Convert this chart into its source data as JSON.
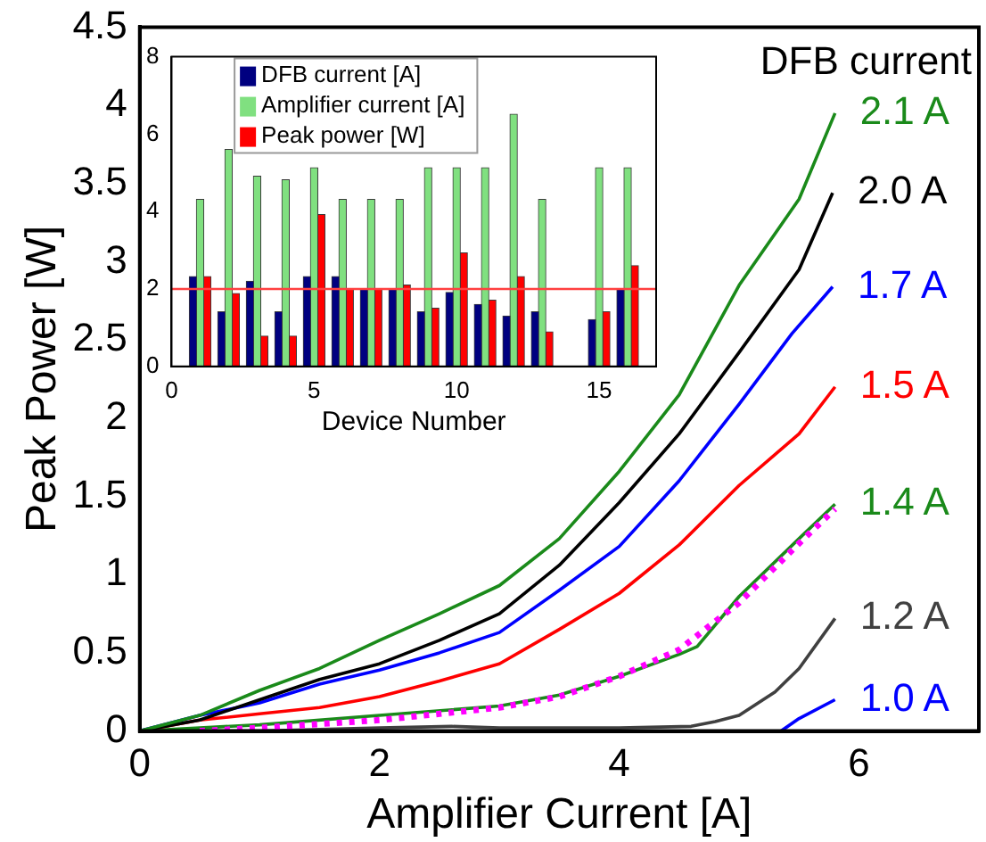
{
  "chart_data": [
    {
      "type": "line",
      "xlabel": "Amplifier Current [A]",
      "ylabel": "Peak Power [W]",
      "legend_title": "DFB current",
      "xlim": [
        0,
        7
      ],
      "xticks": [
        0,
        2,
        4,
        6
      ],
      "ylim": [
        0,
        4.5
      ],
      "yticks": [
        0,
        0.5,
        1,
        1.5,
        2,
        2.5,
        3,
        3.5,
        4,
        4.5
      ],
      "grid": false,
      "legend": false,
      "marker": "none",
      "series": [
        {
          "name": "2.1 A",
          "color": "#1a8a1a",
          "x": [
            0,
            0.5,
            1,
            1.5,
            2,
            2.5,
            3,
            3.5,
            4,
            4.5,
            5,
            5.5,
            5.8
          ],
          "values": [
            0,
            0.1,
            0.26,
            0.4,
            0.58,
            0.75,
            0.93,
            1.23,
            1.66,
            2.15,
            2.85,
            3.4,
            3.95
          ]
        },
        {
          "name": "2.0 A",
          "color": "#000000",
          "x": [
            0,
            0.5,
            1,
            1.5,
            2,
            2.5,
            3,
            3.5,
            4,
            4.5,
            5,
            5.5,
            5.78
          ],
          "values": [
            0,
            0.07,
            0.2,
            0.33,
            0.43,
            0.58,
            0.75,
            1.06,
            1.46,
            1.9,
            2.42,
            2.95,
            3.44
          ]
        },
        {
          "name": "1.7 A",
          "color": "#0000ff",
          "x": [
            0,
            0.5,
            1,
            1.5,
            2,
            2.5,
            3,
            3.5,
            4,
            4.5,
            5,
            5.44,
            5.78
          ],
          "values": [
            0,
            0.1,
            0.18,
            0.3,
            0.39,
            0.5,
            0.63,
            0.9,
            1.18,
            1.6,
            2.09,
            2.54,
            2.84
          ]
        },
        {
          "name": "1.5 A",
          "color": "#ff0000",
          "x": [
            0,
            0.5,
            1,
            1.5,
            2,
            2.5,
            3,
            3.5,
            4,
            4.5,
            5,
            5.5,
            5.8
          ],
          "values": [
            0,
            0.07,
            0.11,
            0.15,
            0.22,
            0.32,
            0.43,
            0.65,
            0.88,
            1.19,
            1.57,
            1.9,
            2.2
          ]
        },
        {
          "color": "#ff00ff",
          "line_style": "dotted",
          "x": [
            0.5,
            1,
            2,
            3,
            3.5,
            4,
            4.5,
            5,
            5.5,
            5.8
          ],
          "values": [
            0,
            0.02,
            0.07,
            0.15,
            0.22,
            0.35,
            0.52,
            0.82,
            1.2,
            1.42
          ]
        },
        {
          "name": "1.4 A",
          "color": "#1a8a1a",
          "x": [
            0,
            0.5,
            1,
            2,
            3,
            3.5,
            4,
            4.5,
            4.65,
            5,
            5.5,
            5.8
          ],
          "values": [
            0,
            0.02,
            0.04,
            0.1,
            0.16,
            0.23,
            0.35,
            0.49,
            0.54,
            0.86,
            1.23,
            1.45
          ]
        },
        {
          "name": "1.2 A",
          "color": "#404040",
          "x": [
            0,
            1,
            2,
            2.6,
            3,
            4,
            4.6,
            4.8,
            5,
            5.3,
            5.5,
            5.8
          ],
          "values": [
            0,
            0,
            0.02,
            0.03,
            0.02,
            0.02,
            0.03,
            0.06,
            0.1,
            0.25,
            0.4,
            0.72
          ]
        },
        {
          "name": "1.0 A",
          "color": "#0000ff",
          "x": [
            5.35,
            5.5,
            5.8
          ],
          "values": [
            0,
            0.08,
            0.2
          ]
        }
      ]
    },
    {
      "type": "bar",
      "xlabel": "Device Number",
      "xlim": [
        0,
        17
      ],
      "xticks": [
        0,
        5,
        10,
        15
      ],
      "ylim": [
        0,
        8
      ],
      "yticks": [
        0,
        2,
        4,
        6,
        8
      ],
      "grid": false,
      "legend": "top left",
      "x": [
        1,
        2,
        3,
        4,
        5,
        6,
        7,
        8,
        9,
        10,
        11,
        12,
        13,
        15,
        16
      ],
      "ref_lines": [
        {
          "axis": "y",
          "value": 2,
          "color": "#ff4040"
        }
      ],
      "series": [
        {
          "name": "DFB current [A]",
          "color": "#000080",
          "values": [
            2.32,
            1.41,
            2.2,
            1.41,
            2.32,
            2.32,
            2.0,
            2.0,
            1.41,
            1.91,
            1.6,
            1.3,
            1.41,
            1.21,
            2.0
          ]
        },
        {
          "name": "Amplifier current [A]",
          "color": "#80e080",
          "values": [
            4.31,
            5.6,
            4.91,
            4.82,
            5.13,
            4.31,
            4.31,
            4.31,
            5.13,
            5.13,
            5.13,
            6.51,
            4.31,
            5.13,
            5.13
          ]
        },
        {
          "name": "Peak power [W]",
          "color": "#ff0000",
          "values": [
            2.32,
            1.88,
            0.78,
            0.78,
            3.92,
            2.0,
            2.0,
            2.1,
            1.5,
            2.93,
            1.71,
            2.32,
            0.89,
            1.41,
            2.6
          ]
        }
      ]
    }
  ]
}
